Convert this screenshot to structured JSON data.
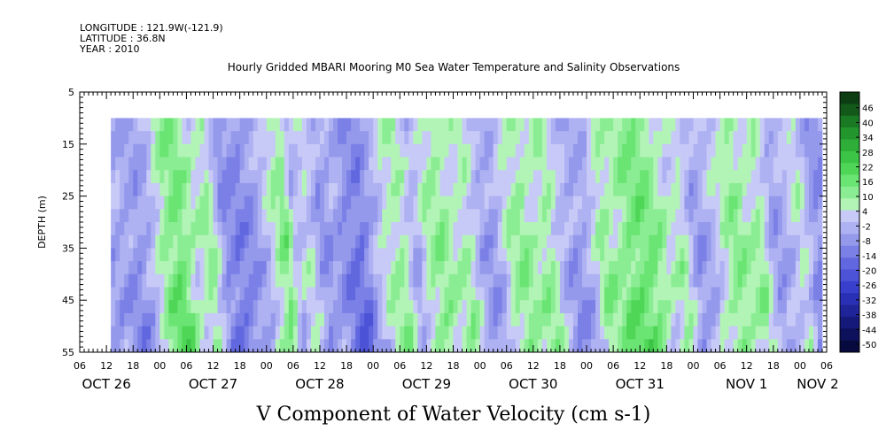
{
  "chart_data": {
    "type": "heatmap",
    "title": "Hourly Gridded MBARI Mooring M0 Sea Water Temperature and Salinity Observations",
    "metadata_lines": [
      "LONGITUDE : 121.9W(-121.9)",
      "LATITUDE : 36.8N",
      "YEAR : 2010"
    ],
    "xlabel": "V Component of Water Velocity (cm s-1)",
    "ylabel": "DEPTH (m)",
    "y_reversed": true,
    "ylim": [
      5,
      55
    ],
    "y_ticks": [
      5,
      15,
      25,
      35,
      45,
      55
    ],
    "x_unit": "hours since 2010-10-26 00:00",
    "xlim": [
      6,
      174
    ],
    "x_hour_tick_labels": [
      "06",
      "12",
      "18",
      "00",
      "06",
      "12",
      "18",
      "00",
      "06",
      "12",
      "18",
      "00",
      "06",
      "12",
      "18",
      "00",
      "06",
      "12",
      "18",
      "00",
      "06",
      "12",
      "18",
      "00",
      "06",
      "12",
      "18",
      "00",
      "06"
    ],
    "x_day_labels": [
      {
        "label": "OCT 26",
        "hour": 12
      },
      {
        "label": "OCT 27",
        "hour": 36
      },
      {
        "label": "OCT 28",
        "hour": 60
      },
      {
        "label": "OCT 29",
        "hour": 84
      },
      {
        "label": "OCT 30",
        "hour": 108
      },
      {
        "label": "OCT 31",
        "hour": 132
      },
      {
        "label": "NOV  1",
        "hour": 156
      },
      {
        "label": "NOV 2",
        "hour": 172
      }
    ],
    "data_start_hour": 13,
    "data_end_hour": 173,
    "depth_top": 10,
    "depth_bottom": 55,
    "colorbar_levels": [
      46,
      40,
      34,
      28,
      22,
      16,
      10,
      4,
      -2,
      -8,
      -14,
      -20,
      -26,
      -32,
      -38,
      -44,
      -50
    ],
    "colorbar_colors": [
      "#0d3d12",
      "#12591a",
      "#1a7a24",
      "#22952c",
      "#2eae38",
      "#3cc446",
      "#4fd657",
      "#6ae473",
      "#8bed93",
      "#b2f4b6",
      "#c7c9f7",
      "#aeb1f2",
      "#9599ec",
      "#7b80e6",
      "#6168df",
      "#4c53d6",
      "#383fcc",
      "#2a30b5",
      "#1f2498",
      "#151979",
      "#0d105a",
      "#070a3e"
    ],
    "field_profile": [
      {
        "hour": 13,
        "v": -6
      },
      {
        "hour": 17,
        "v": -9
      },
      {
        "hour": 20,
        "v": -3
      },
      {
        "hour": 23,
        "v": 10
      },
      {
        "hour": 26,
        "v": 14
      },
      {
        "hour": 30,
        "v": 2
      },
      {
        "hour": 33,
        "v": 8
      },
      {
        "hour": 36,
        "v": -10
      },
      {
        "hour": 40,
        "v": -13
      },
      {
        "hour": 44,
        "v": -7
      },
      {
        "hour": 48,
        "v": 5
      },
      {
        "hour": 50,
        "v": 12
      },
      {
        "hour": 52,
        "v": -4
      },
      {
        "hour": 55,
        "v": 3
      },
      {
        "hour": 58,
        "v": -9
      },
      {
        "hour": 61,
        "v": -6
      },
      {
        "hour": 64,
        "v": -12
      },
      {
        "hour": 67,
        "v": -15
      },
      {
        "hour": 70,
        "v": -4
      },
      {
        "hour": 73,
        "v": 4
      },
      {
        "hour": 76,
        "v": 7
      },
      {
        "hour": 79,
        "v": -5
      },
      {
        "hour": 82,
        "v": 6
      },
      {
        "hour": 85,
        "v": 9
      },
      {
        "hour": 88,
        "v": 3
      },
      {
        "hour": 91,
        "v": 6
      },
      {
        "hour": 94,
        "v": -6
      },
      {
        "hour": 97,
        "v": -8
      },
      {
        "hour": 100,
        "v": 5
      },
      {
        "hour": 103,
        "v": 9
      },
      {
        "hour": 106,
        "v": 4
      },
      {
        "hour": 109,
        "v": 8
      },
      {
        "hour": 112,
        "v": -3
      },
      {
        "hour": 115,
        "v": -8
      },
      {
        "hour": 118,
        "v": -6
      },
      {
        "hour": 121,
        "v": 8
      },
      {
        "hour": 124,
        "v": 6
      },
      {
        "hour": 127,
        "v": 12
      },
      {
        "hour": 130,
        "v": 14
      },
      {
        "hour": 133,
        "v": 10
      },
      {
        "hour": 136,
        "v": 2
      },
      {
        "hour": 139,
        "v": 6
      },
      {
        "hour": 142,
        "v": -8
      },
      {
        "hour": 145,
        "v": -5
      },
      {
        "hour": 148,
        "v": 3
      },
      {
        "hour": 151,
        "v": 10
      },
      {
        "hour": 154,
        "v": 5
      },
      {
        "hour": 157,
        "v": 7
      },
      {
        "hour": 160,
        "v": -9
      },
      {
        "hour": 163,
        "v": -3
      },
      {
        "hour": 166,
        "v": 4
      },
      {
        "hour": 169,
        "v": -10
      },
      {
        "hour": 172,
        "v": -12
      },
      {
        "hour": 173,
        "v": 6
      }
    ]
  }
}
